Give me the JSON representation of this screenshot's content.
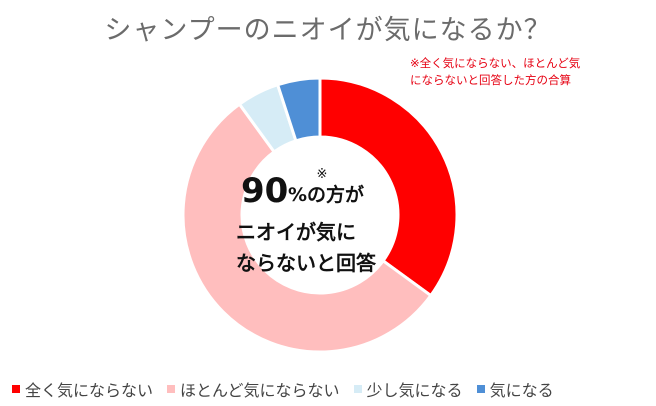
{
  "title": "シャンプーのニオイが気になるか？",
  "note_lines": [
    "※全く気にならない、ほとんど気",
    "にならないと回答した方の合算"
  ],
  "center": {
    "asterisk": "※",
    "percent": "90",
    "percent_suffix": "%の方が",
    "line2": "ニオイが気に",
    "line3": "ならないと回答"
  },
  "chart_data": {
    "type": "pie",
    "title": "シャンプーのニオイが気になるか？",
    "donut": true,
    "legend_position": "bottom",
    "categories": [
      "全く気にならない",
      "ほとんど気にならない",
      "少し気になる",
      "気になる"
    ],
    "values": [
      35,
      55,
      5,
      5
    ],
    "colors": [
      "#ff0000",
      "#ffbebe",
      "#d6ecf6",
      "#4f8fd6"
    ]
  }
}
